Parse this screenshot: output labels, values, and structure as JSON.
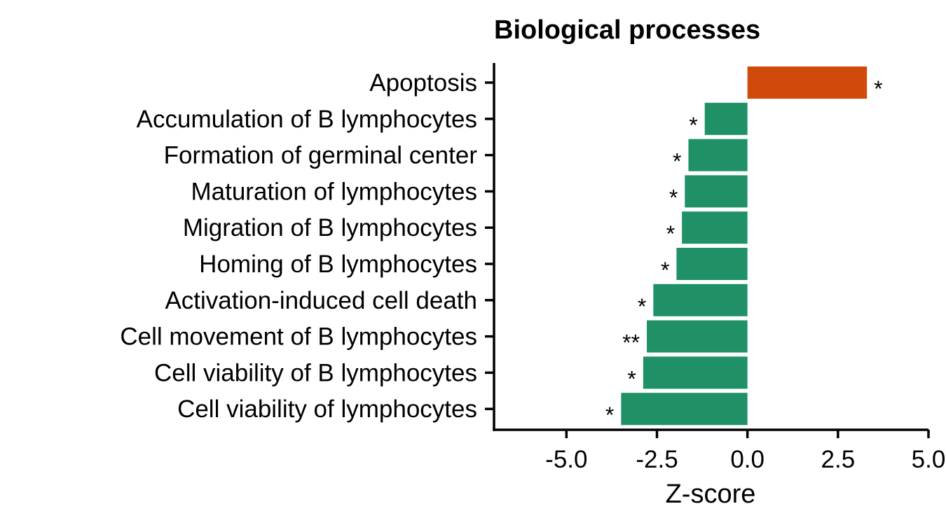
{
  "chart_data": {
    "type": "bar",
    "orientation": "horizontal",
    "title": "Biological processes",
    "xlabel": "Z-score",
    "ylabel": "",
    "xlim": [
      -7,
      5
    ],
    "xticks": [
      -5.0,
      -2.5,
      0.0,
      2.5,
      5.0
    ],
    "xtick_labels": [
      "-5.0",
      "-2.5",
      "0.0",
      "2.5",
      "5.0"
    ],
    "categories": [
      "Apoptosis",
      "Accumulation of B lymphocytes",
      "Formation of germinal center",
      "Maturation of lymphocytes",
      "Migration of B lymphocytes",
      "Homing of B lymphocytes",
      "Activation-induced cell death",
      "Cell movement of B lymphocytes",
      "Cell viability of B lymphocytes",
      "Cell viability of lymphocytes"
    ],
    "values": [
      3.3,
      -1.18,
      -1.63,
      -1.73,
      -1.81,
      -1.96,
      -2.6,
      -2.78,
      -2.88,
      -3.49
    ],
    "significance": [
      "*",
      "*",
      "*",
      "*",
      "*",
      "*",
      "*",
      "**",
      "*",
      "*"
    ],
    "colors": {
      "positive": "#d04a0b",
      "negative": "#209167"
    },
    "grid": false,
    "legend": "none"
  }
}
